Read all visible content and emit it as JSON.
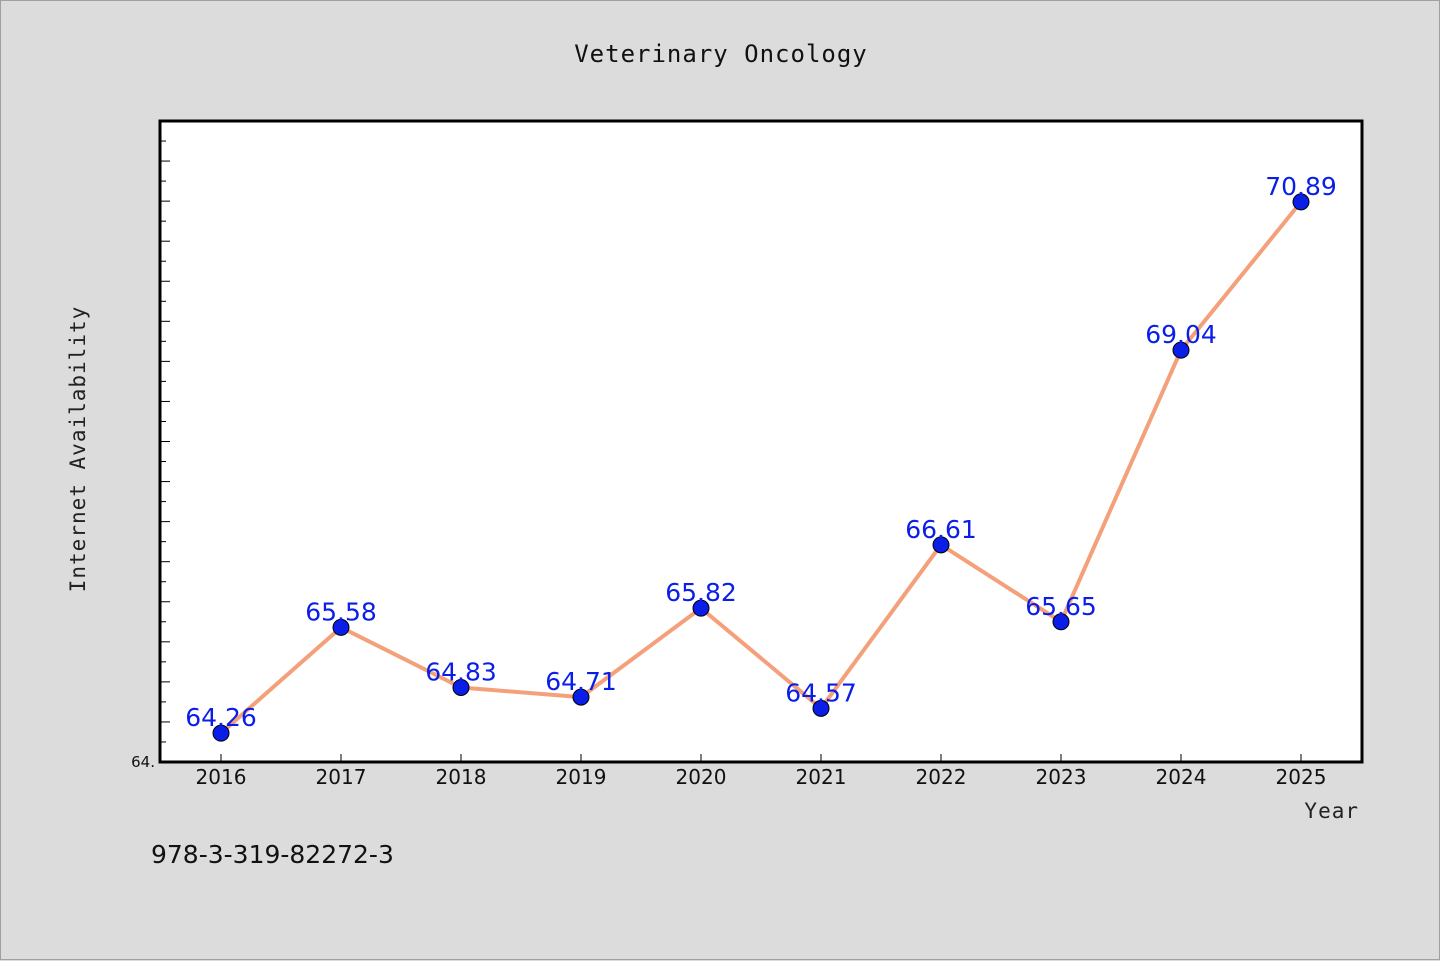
{
  "chart_data": {
    "type": "line",
    "title": "Veterinary Oncology",
    "xlabel": "Year",
    "ylabel": "Internet Availability",
    "x": [
      "2016",
      "2017",
      "2018",
      "2019",
      "2020",
      "2021",
      "2022",
      "2023",
      "2024",
      "2025"
    ],
    "values": [
      64.26,
      65.58,
      64.83,
      64.71,
      65.82,
      64.57,
      66.61,
      65.65,
      69.04,
      70.89
    ],
    "data_labels": [
      "64.26",
      "65.58",
      "64.83",
      "64.71",
      "65.82",
      "64.57",
      "66.61",
      "65.65",
      "69.04",
      "70.89"
    ],
    "ylim": [
      63.9,
      71.9
    ],
    "y_min_label": "64.",
    "grid": false,
    "legend": "none",
    "line_color": "#f4a07a",
    "marker_color": "#0a1ee8",
    "label_color": "#0a1ee8"
  },
  "footer": {
    "code": "978-3-319-82272-3"
  }
}
